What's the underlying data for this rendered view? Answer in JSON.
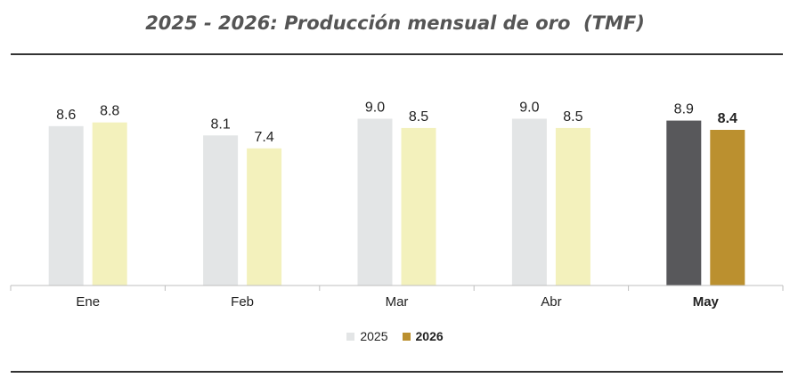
{
  "title": "2025 - 2026: Producción mensual de oro  (TMF)",
  "chart_data": {
    "type": "bar",
    "title": "2025 - 2026: Producción mensual de oro  (TMF)",
    "categories": [
      "Ene",
      "Feb",
      "Mar",
      "Abr",
      "May"
    ],
    "highlighted_category": "May",
    "series": [
      {
        "name": "2025",
        "values": [
          8.6,
          8.1,
          9.0,
          9.0,
          8.9
        ],
        "labels": [
          "8.6",
          "8.1",
          "9.0",
          "9.0",
          "8.9"
        ],
        "color": "#e3e5e6",
        "highlight_color": "#58585b"
      },
      {
        "name": "2026",
        "values": [
          8.8,
          7.4,
          8.5,
          8.5,
          8.4
        ],
        "labels": [
          "8.8",
          "7.4",
          "8.5",
          "8.5",
          "8.4"
        ],
        "color": "#f3f1bc",
        "highlight_color": "#bb902f"
      }
    ],
    "xlabel": "",
    "ylabel": "",
    "ylim": [
      0,
      9.6
    ],
    "grid": false,
    "legend_position": "bottom-center"
  },
  "legend": [
    {
      "label": "2025",
      "color": "#e3e5e6",
      "bold": false
    },
    {
      "label": "2026",
      "color": "#bb902f",
      "bold": true
    }
  ]
}
